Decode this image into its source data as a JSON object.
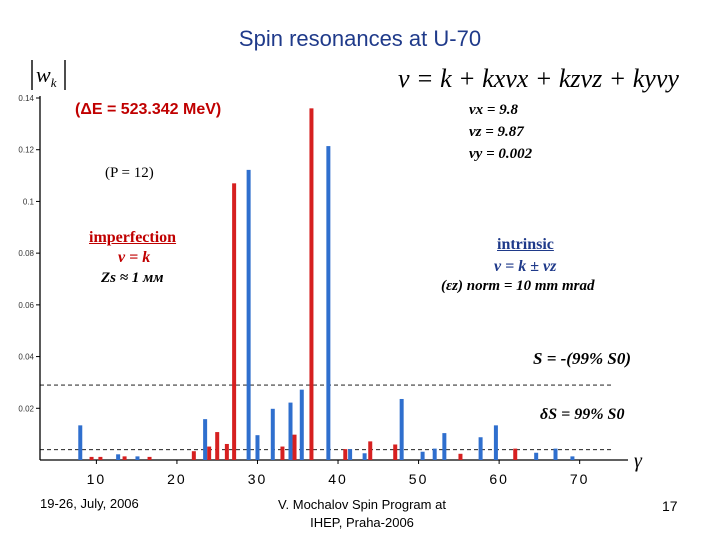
{
  "slide": {
    "title": "Spin resonances at U-70",
    "formula": "ν = k + kxνx + kzνz + kyνy",
    "y_axis_symbol": "wk",
    "energy_step": "(ΔE = 523.342 MeV)",
    "nu_x": "νx = 9.8",
    "nu_z": "νz = 9.87",
    "nu_y": "νy = 0.002",
    "periodicity": "(P = 12)",
    "imperfection": {
      "title": "imperfection",
      "equation": "ν = k",
      "zs": "Zs ≈ 1 мм"
    },
    "intrinsic": {
      "title": "intrinsic",
      "equation": "ν = k ± νz",
      "emittance": "(εz) norm = 10 mm mrad"
    },
    "s_label": "S = -(99% S0)",
    "ds_label": "δS = 99% S0",
    "x_symbol": "γ",
    "footer_dates": "19-26, July, 2006",
    "footer_line1": "V. Mochalov Spin Program at",
    "footer_line2": "IHEP, Praha-2006",
    "page_number": "17"
  },
  "chart_data": {
    "type": "bar",
    "title": "Spin resonances at U-70",
    "xlabel": "γ",
    "ylabel": "|wk|",
    "xlim": [
      3,
      76
    ],
    "ylim": [
      0,
      0.14
    ],
    "x_ticks": [
      10,
      20,
      30,
      40,
      50,
      60,
      70
    ],
    "y_ticks": [
      0.02,
      0.04,
      0.06,
      0.08,
      0.1,
      0.12,
      0.14
    ],
    "y_tick_labels": [
      "0.02",
      "0.04",
      "0.06",
      "0.08",
      "0.1",
      "0.12",
      "0.14"
    ],
    "reference_lines": [
      {
        "name": "S level",
        "value": 0.029,
        "style": "dashed"
      },
      {
        "name": "dS level",
        "value": 0.004,
        "style": "dashed"
      }
    ],
    "series": [
      {
        "name": "imperfection",
        "color": "#d62020",
        "points": [
          [
            9.4,
            0.0012
          ],
          [
            10.5,
            0.0012
          ],
          [
            13.5,
            0.0014
          ],
          [
            16.6,
            0.0012
          ],
          [
            22.1,
            0.0034
          ],
          [
            24.0,
            0.0052
          ],
          [
            25.0,
            0.0108
          ],
          [
            26.2,
            0.0062
          ],
          [
            27.1,
            0.107
          ],
          [
            33.1,
            0.0052
          ],
          [
            34.6,
            0.0098
          ],
          [
            36.7,
            0.136
          ],
          [
            40.9,
            0.0042
          ],
          [
            44.0,
            0.0072
          ],
          [
            47.1,
            0.006
          ],
          [
            55.2,
            0.0024
          ],
          [
            62.0,
            0.0044
          ]
        ]
      },
      {
        "name": "intrinsic",
        "color": "#2f6fce",
        "points": [
          [
            8.0,
            0.0134
          ],
          [
            12.7,
            0.0022
          ],
          [
            15.1,
            0.0014
          ],
          [
            23.5,
            0.0158
          ],
          [
            28.9,
            0.1122
          ],
          [
            30.0,
            0.0096
          ],
          [
            31.9,
            0.0198
          ],
          [
            34.1,
            0.0222
          ],
          [
            35.5,
            0.0272
          ],
          [
            38.8,
            0.1214
          ],
          [
            41.5,
            0.0042
          ],
          [
            43.3,
            0.0026
          ],
          [
            47.9,
            0.0236
          ],
          [
            50.5,
            0.0032
          ],
          [
            52.0,
            0.0044
          ],
          [
            53.2,
            0.0104
          ],
          [
            57.7,
            0.0088
          ],
          [
            59.6,
            0.0134
          ],
          [
            64.6,
            0.0028
          ],
          [
            67.0,
            0.0044
          ],
          [
            69.1,
            0.0014
          ]
        ]
      }
    ]
  }
}
